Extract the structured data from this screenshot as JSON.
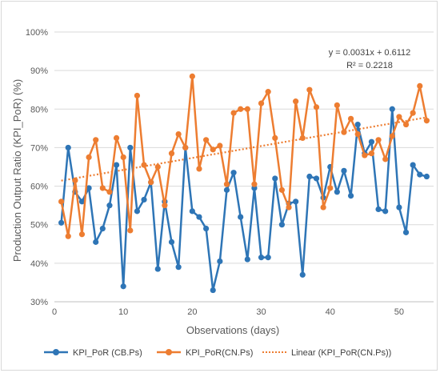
{
  "chart_data": {
    "type": "line",
    "xlabel": "Observations (days)",
    "ylabel": "Production Output Ratio (KPI_PoR) (%)",
    "xlim": [
      0,
      55
    ],
    "ylim": [
      30,
      100
    ],
    "x_ticks": [
      0,
      10,
      20,
      30,
      40,
      50
    ],
    "y_ticks": [
      30,
      40,
      50,
      60,
      70,
      80,
      90,
      100
    ],
    "y_tick_labels": [
      "30%",
      "40%",
      "50%",
      "60%",
      "70%",
      "80%",
      "90%",
      "100%"
    ],
    "x_tick_labels": [
      "0",
      "10",
      "20",
      "30",
      "40",
      "50"
    ],
    "grid": "horizontal",
    "legend_position": "bottom",
    "series": [
      {
        "name": "KPI_PoR (CB.Ps)",
        "color": "#2e75b6",
        "x": [
          1,
          2,
          3,
          4,
          5,
          6,
          7,
          8,
          9,
          10,
          11,
          12,
          13,
          14,
          15,
          16,
          17,
          18,
          19,
          20,
          21,
          22,
          23,
          24,
          25,
          26,
          27,
          28,
          29,
          30,
          31,
          32,
          33,
          34,
          35,
          36,
          37,
          38,
          39,
          40,
          41,
          42,
          43,
          44,
          45,
          46,
          47,
          48,
          49,
          50,
          51,
          52,
          53,
          54
        ],
        "values": [
          50.5,
          70.0,
          58.5,
          56.0,
          59.5,
          45.5,
          49.0,
          55.0,
          65.5,
          34.0,
          70.0,
          53.5,
          56.5,
          61.0,
          38.5,
          56.0,
          45.5,
          39.0,
          70.0,
          53.5,
          52.0,
          49.0,
          33.0,
          40.5,
          59.0,
          63.5,
          52.0,
          41.0,
          59.5,
          41.5,
          41.5,
          62.0,
          50.0,
          55.5,
          56.0,
          37.0,
          62.5,
          62.0,
          57.0,
          65.0,
          58.5,
          64.0,
          57.5,
          76.0,
          68.5,
          71.5,
          54.0,
          53.5,
          80.0,
          54.5,
          48.0,
          65.5,
          63.0,
          62.5
        ]
      },
      {
        "name": "KPI_PoR(CN.Ps)",
        "color": "#ed7d31",
        "x": [
          1,
          2,
          3,
          4,
          5,
          6,
          7,
          8,
          9,
          10,
          11,
          12,
          13,
          14,
          15,
          16,
          17,
          18,
          19,
          20,
          21,
          22,
          23,
          24,
          25,
          26,
          27,
          28,
          29,
          30,
          31,
          32,
          33,
          34,
          35,
          36,
          37,
          38,
          39,
          40,
          41,
          42,
          43,
          44,
          45,
          46,
          47,
          48,
          49,
          50,
          51,
          52,
          53,
          54
        ],
        "values": [
          56.0,
          47.0,
          61.5,
          47.5,
          67.5,
          72.0,
          59.5,
          58.5,
          72.5,
          67.5,
          48.5,
          83.5,
          65.5,
          61.0,
          65.0,
          55.0,
          68.5,
          73.5,
          70.0,
          88.5,
          64.5,
          72.0,
          69.5,
          70.5,
          60.5,
          79.0,
          80.0,
          80.0,
          60.5,
          81.5,
          84.5,
          72.5,
          59.0,
          54.5,
          82.0,
          72.5,
          85.0,
          80.5,
          54.5,
          59.5,
          81.0,
          74.0,
          77.5,
          73.5,
          68.0,
          68.5,
          72.0,
          67.0,
          73.0,
          78.0,
          76.0,
          79.0,
          86.0,
          77.0
        ]
      }
    ],
    "trendline": {
      "name": "Linear (KPI_PoR(CN.Ps))",
      "color": "#ed7d31",
      "slope": 0.0031,
      "intercept": 0.6112,
      "x_range": [
        1,
        54
      ],
      "equation": "y = 0.0031x + 0.6112",
      "r2": "R² = 0.2218"
    }
  }
}
